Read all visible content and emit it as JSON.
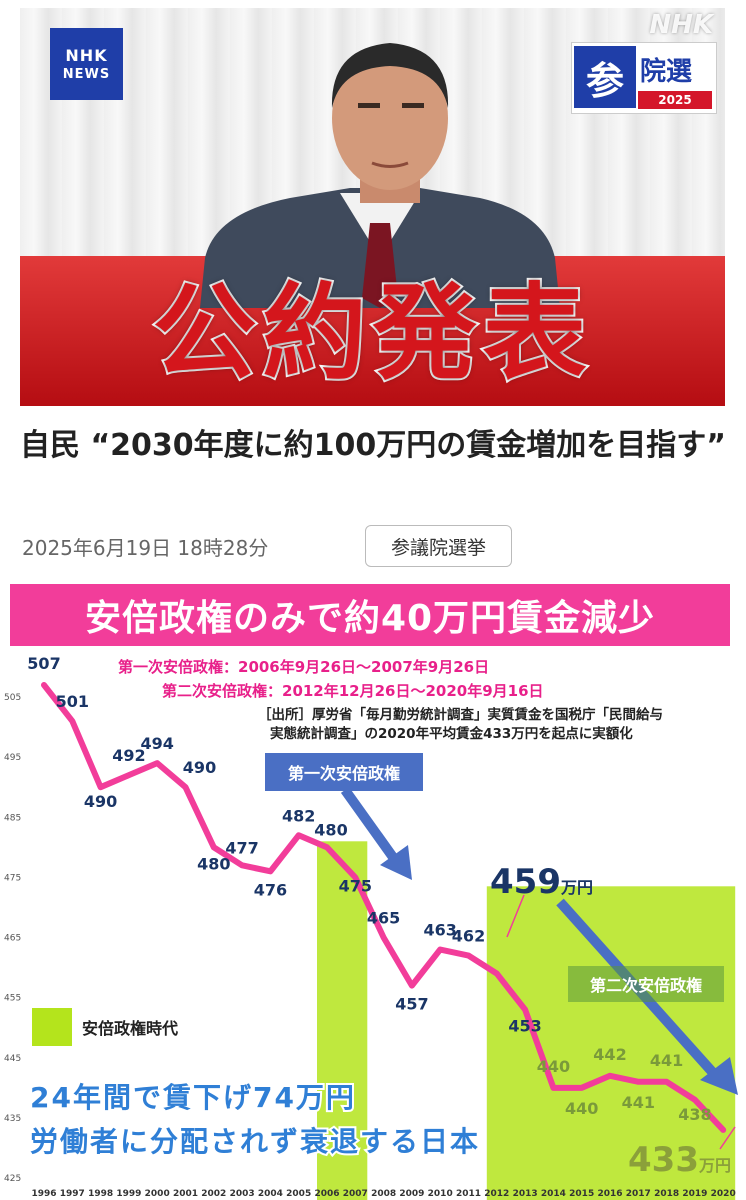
{
  "thumbnail": {
    "nhk_news_line1": "NHK",
    "nhk_news_line2": "NEWS",
    "watermark": "NHK",
    "election_badge": {
      "kanji1": "参",
      "kanji2": "院選",
      "year": "2025",
      "color": "#1f3ea8",
      "year_color": "#d4162a"
    },
    "headline": "公約発表"
  },
  "article": {
    "title": "自民 “2030年度に約100万円の賃金増加を目指す”",
    "date": "2025年6月19日 18時28分",
    "tag": "参議院選挙"
  },
  "chart_data": {
    "type": "line",
    "title": "安倍政権のみで約40万円賃金減少",
    "notes": {
      "first_term": "第一次安倍政権：2006年9月26日〜2007年9月26日",
      "second_term": "第二次安倍政権：2012年12月26日〜2020年9月16日",
      "source_line1": "［出所］厚労省「毎月勤労統計調査」実質賃金を国税庁「民間給与",
      "source_line2": "実態統計調査」の2020年平均賃金433万円を起点に実額化"
    },
    "callouts": {
      "first": "第一次安倍政権",
      "second": "第二次安倍政権"
    },
    "highlights": {
      "v459": "459",
      "v433": "433",
      "unit": "万円"
    },
    "legend": {
      "label": "安倍政権時代",
      "color": "#b4e41c"
    },
    "summary": {
      "line1": "24年間で賃下げ74万円",
      "line2": "労働者に分配されず衰退する日本"
    },
    "x": [
      "1996",
      "1997",
      "1998",
      "1999",
      "2000",
      "2001",
      "2002",
      "2003",
      "2004",
      "2005",
      "2006",
      "2007",
      "2008",
      "2009",
      "2010",
      "2011",
      "2012",
      "2013",
      "2014",
      "2015",
      "2016",
      "2017",
      "2018",
      "2019",
      "2020"
    ],
    "series": [
      {
        "values": [
          507,
          501,
          490,
          492,
          494,
          490,
          480,
          477,
          476,
          482,
          480,
          475,
          465,
          457,
          463,
          462,
          459,
          453,
          440,
          440,
          442,
          441,
          441,
          438,
          433
        ]
      }
    ],
    "point_labels": [
      "507",
      "501",
      "490",
      "492",
      "494",
      "490",
      "480",
      "477",
      "476",
      "482",
      "480",
      "475",
      "465",
      "457",
      "463",
      "462",
      "",
      "453",
      "440",
      "440",
      "442",
      "441",
      "441",
      "438",
      ""
    ],
    "yticks": [
      "425",
      "435",
      "445",
      "455",
      "465",
      "475",
      "485",
      "495",
      "505"
    ],
    "ylim": [
      425,
      509
    ],
    "shaded_periods": [
      [
        "2006",
        "2007"
      ],
      [
        "2012",
        "2020"
      ]
    ],
    "line_color": "#f23d9a",
    "grid": false,
    "legend_position": "left"
  }
}
